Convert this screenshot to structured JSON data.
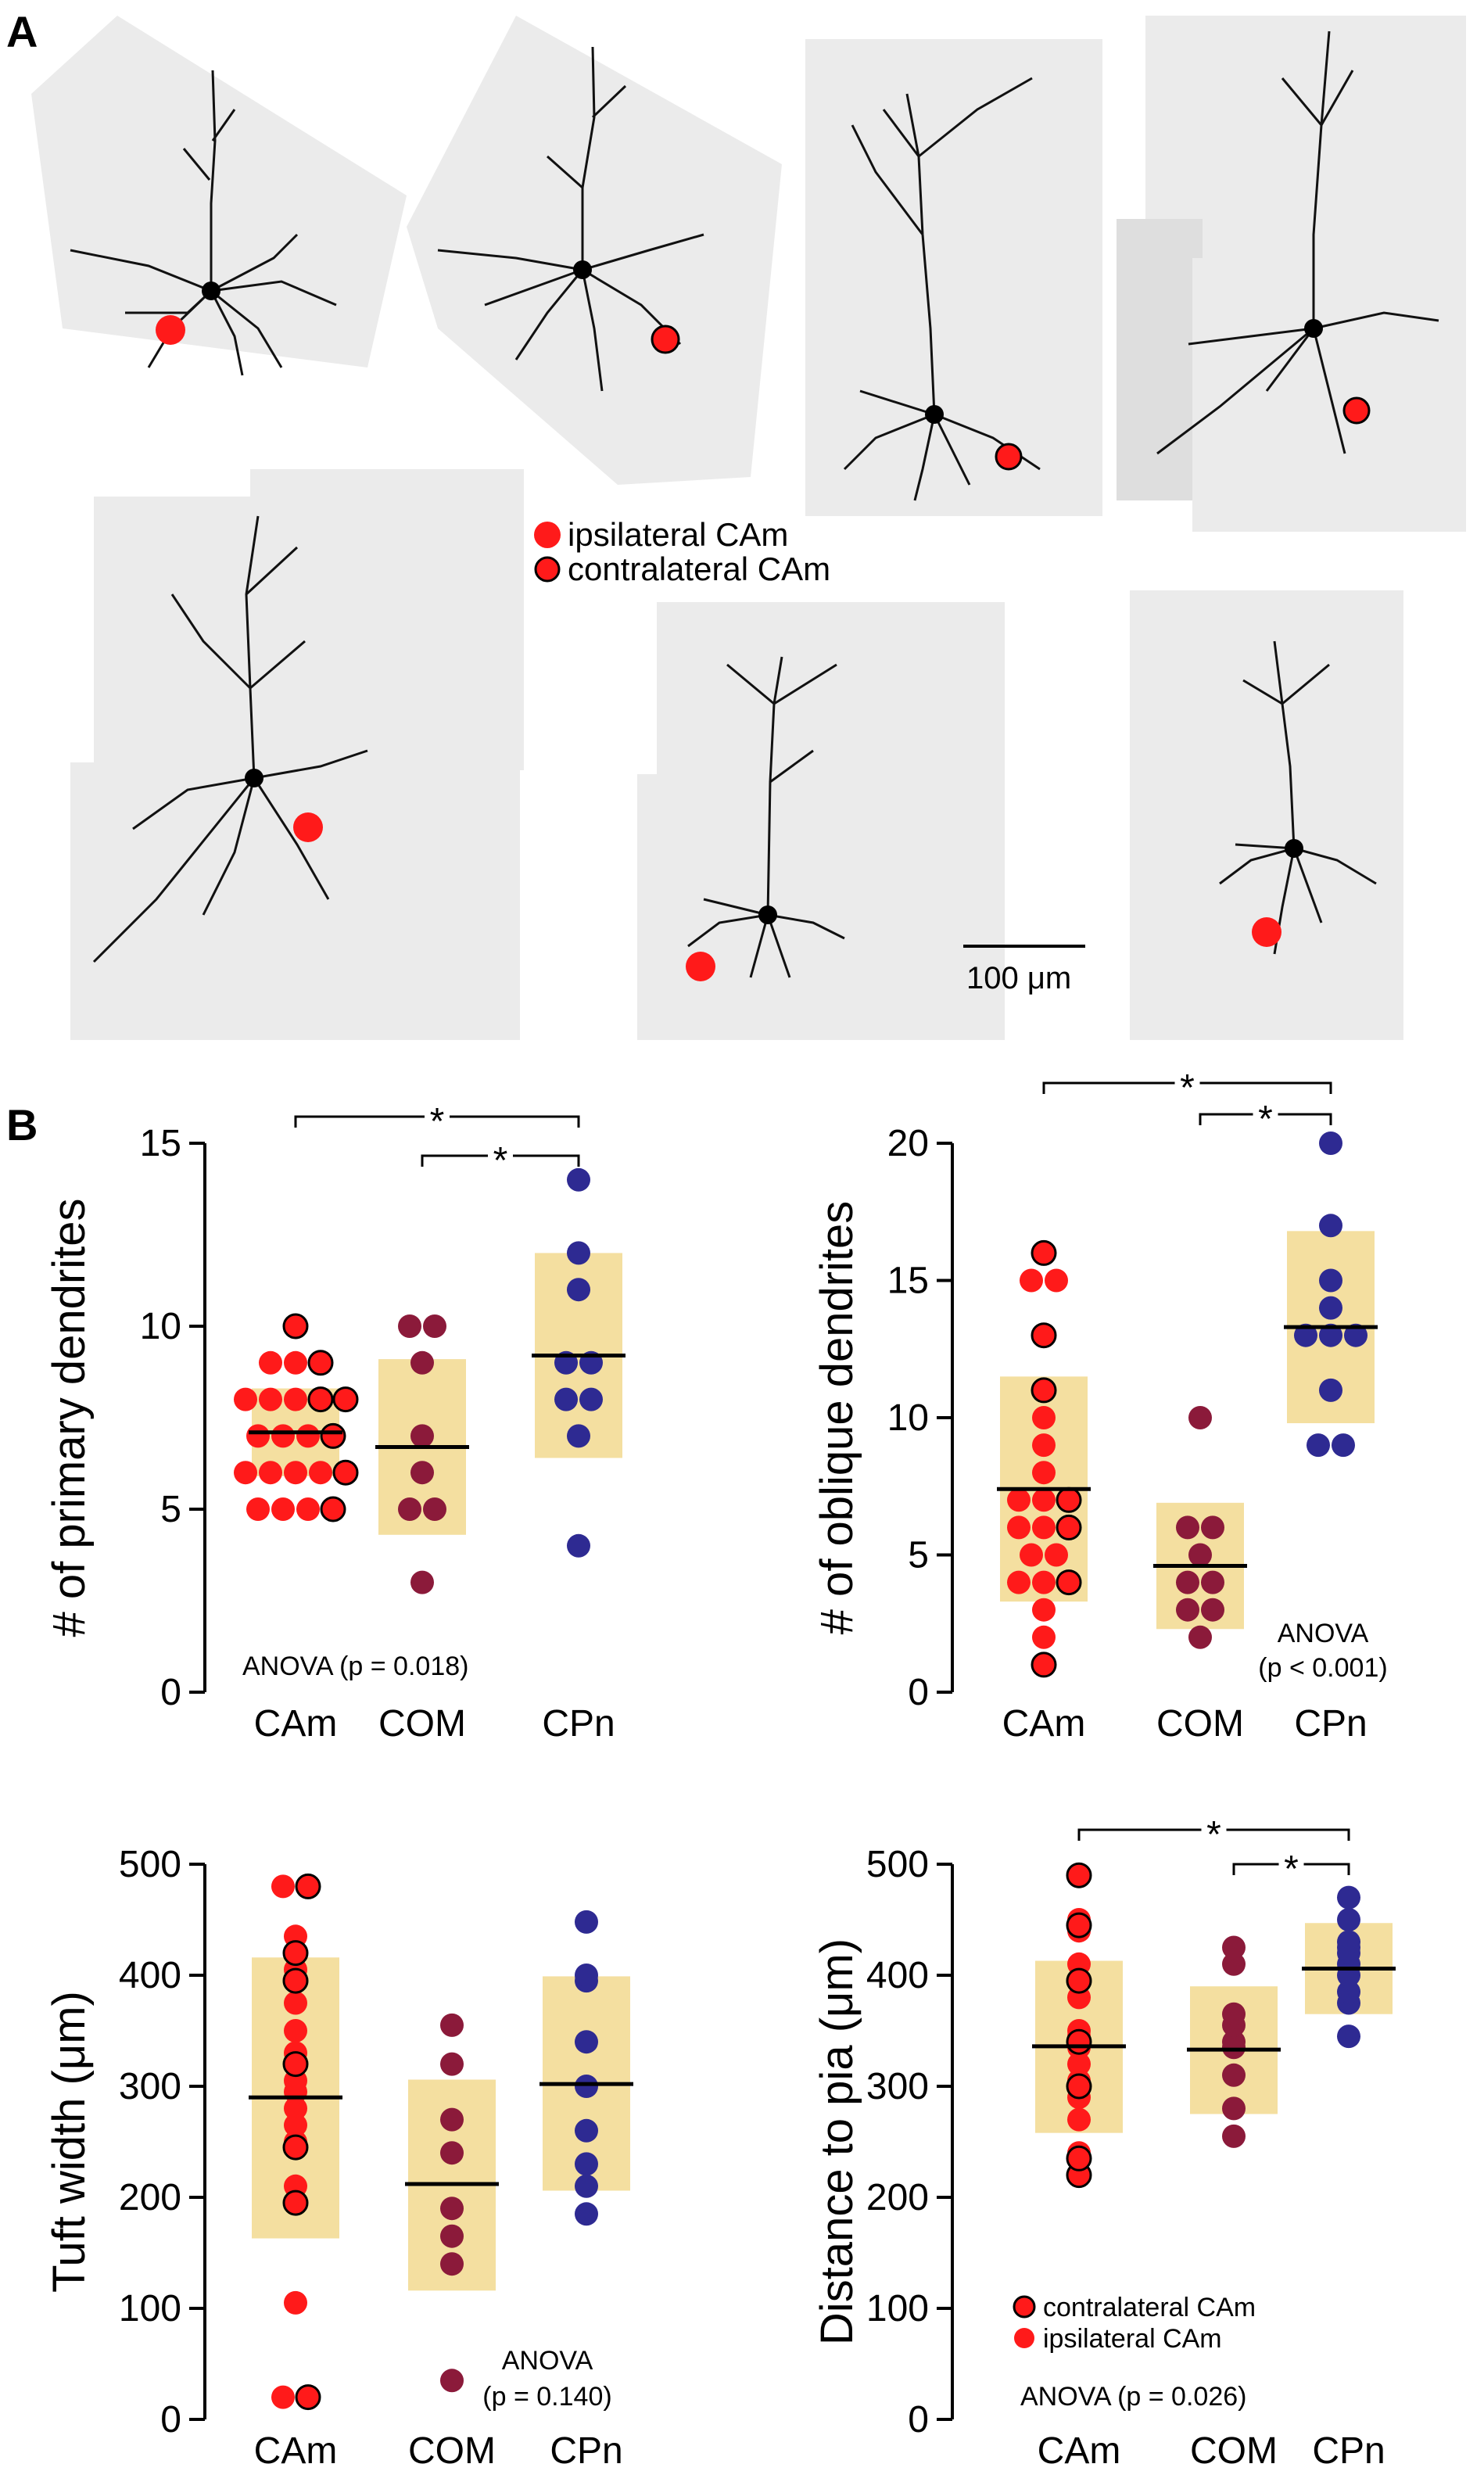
{
  "panel_labels": {
    "a": "A",
    "b": "B"
  },
  "legend_a": {
    "ipsi": "ipsilateral CAm",
    "contra": "contralateral CAm"
  },
  "scale_bar": "100 μm",
  "colors": {
    "ipsi": "#ff1a1a",
    "com": "#8b1a3a",
    "cpn": "#2e2a92",
    "band": "#f4dfa0"
  },
  "categories": [
    "CAm",
    "COM",
    "CPn"
  ],
  "chart_data": [
    {
      "type": "scatter",
      "ylabel": "# of primary dendrites",
      "ylim": [
        0,
        15
      ],
      "yticks": [
        0,
        5,
        10,
        15
      ],
      "anova": [
        "ANOVA (p = 0.018)"
      ],
      "sig": [
        {
          "from": "CAm",
          "to": "CPn",
          "label": "*"
        },
        {
          "from": "COM",
          "to": "CPn",
          "label": "*"
        }
      ],
      "groups": [
        {
          "name": "CAm",
          "mean": 7.1,
          "sd_low": 5.9,
          "sd_high": 8.3,
          "ipsi": [
            5,
            5,
            5,
            6,
            6,
            6,
            6,
            7,
            7,
            7,
            8,
            8,
            8,
            9,
            9
          ],
          "contra": [
            5,
            6,
            7,
            8,
            8,
            9,
            10
          ]
        },
        {
          "name": "COM",
          "mean": 6.7,
          "sd_low": 4.3,
          "sd_high": 9.1,
          "values": [
            3,
            5,
            5,
            6,
            7,
            9,
            10,
            10
          ]
        },
        {
          "name": "CPn",
          "mean": 9.2,
          "sd_low": 6.4,
          "sd_high": 12.0,
          "values": [
            4,
            7,
            8,
            8,
            9,
            9,
            11,
            12,
            14
          ]
        }
      ]
    },
    {
      "type": "scatter",
      "ylabel": "# of oblique dendrites",
      "ylim": [
        0,
        20
      ],
      "yticks": [
        0,
        5,
        10,
        15,
        20
      ],
      "anova": [
        "ANOVA",
        "(p < 0.001)"
      ],
      "sig": [
        {
          "from": "CAm",
          "to": "CPn",
          "label": "*"
        },
        {
          "from": "COM",
          "to": "CPn",
          "label": "*"
        }
      ],
      "groups": [
        {
          "name": "CAm",
          "mean": 7.4,
          "sd_low": 3.3,
          "sd_high": 11.5,
          "ipsi": [
            2,
            3,
            4,
            4,
            5,
            5,
            6,
            6,
            7,
            7,
            8,
            9,
            10,
            15,
            15
          ],
          "contra": [
            1,
            4,
            6,
            7,
            11,
            13,
            16
          ]
        },
        {
          "name": "COM",
          "mean": 4.6,
          "sd_low": 2.3,
          "sd_high": 6.9,
          "values": [
            2,
            3,
            3,
            4,
            4,
            5,
            6,
            6,
            10
          ]
        },
        {
          "name": "CPn",
          "mean": 13.3,
          "sd_low": 9.8,
          "sd_high": 16.8,
          "values": [
            9,
            9,
            11,
            13,
            13,
            13,
            14,
            15,
            17,
            20
          ]
        }
      ]
    },
    {
      "type": "scatter",
      "ylabel": "Tuft width (μm)",
      "ylim": [
        0,
        500
      ],
      "yticks": [
        0,
        100,
        200,
        300,
        400,
        500
      ],
      "anova": [
        "ANOVA",
        "(p = 0.140)"
      ],
      "sig": [],
      "groups": [
        {
          "name": "CAm",
          "mean": 290,
          "sd_low": 163,
          "sd_high": 416,
          "ipsi": [
            20,
            105,
            210,
            250,
            265,
            280,
            295,
            305,
            330,
            350,
            375,
            405,
            435,
            480
          ],
          "contra": [
            20,
            195,
            245,
            320,
            395,
            420,
            480
          ]
        },
        {
          "name": "COM",
          "mean": 212,
          "sd_low": 116,
          "sd_high": 306,
          "values": [
            35,
            140,
            165,
            190,
            240,
            270,
            320,
            355
          ]
        },
        {
          "name": "CPn",
          "mean": 302,
          "sd_low": 206,
          "sd_high": 399,
          "values": [
            185,
            210,
            230,
            260,
            300,
            340,
            395,
            400,
            448
          ]
        }
      ]
    },
    {
      "type": "scatter",
      "ylabel": "Distance to pia (μm)",
      "ylim": [
        0,
        500
      ],
      "yticks": [
        0,
        100,
        200,
        300,
        400,
        500
      ],
      "anova": [
        "ANOVA (p = 0.026)"
      ],
      "sig": [
        {
          "from": "CAm",
          "to": "CPn",
          "label": "*"
        },
        {
          "from": "COM",
          "to": "CPn",
          "label": "*"
        }
      ],
      "legend": {
        "contra": "contralateral CAm",
        "ipsi": "ipsilateral CAm"
      },
      "groups": [
        {
          "name": "CAm",
          "mean": 336,
          "sd_low": 258,
          "sd_high": 413,
          "ipsi": [
            240,
            270,
            290,
            305,
            320,
            335,
            345,
            350,
            380,
            410,
            440,
            450
          ],
          "contra": [
            220,
            235,
            300,
            340,
            395,
            445,
            490
          ]
        },
        {
          "name": "COM",
          "mean": 333,
          "sd_low": 275,
          "sd_high": 390,
          "values": [
            255,
            280,
            310,
            335,
            340,
            355,
            365,
            410,
            425
          ]
        },
        {
          "name": "CPn",
          "mean": 406,
          "sd_low": 365,
          "sd_high": 447,
          "values": [
            345,
            375,
            385,
            400,
            410,
            420,
            425,
            430,
            450,
            470
          ]
        }
      ]
    }
  ]
}
